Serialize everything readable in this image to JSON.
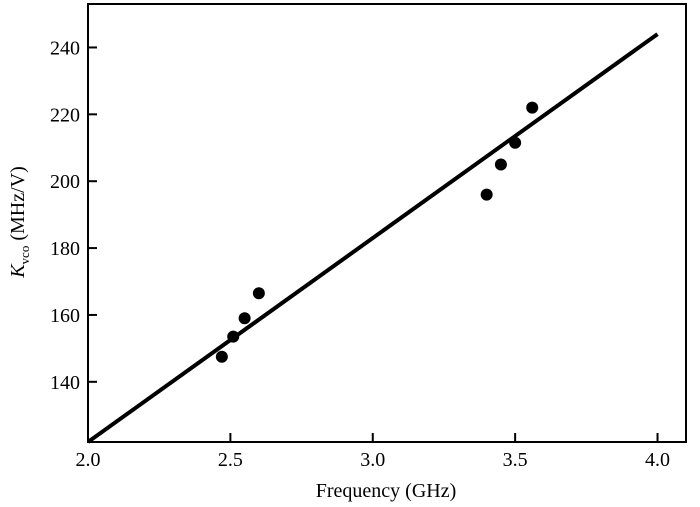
{
  "chart_data": {
    "type": "scatter",
    "xlabel": "Frequency (GHz)",
    "ylabel": {
      "symbol": "K",
      "subscript": "vco",
      "unit": " (MHz/V)"
    },
    "xlim": [
      2.0,
      4.1
    ],
    "ylim": [
      122,
      253
    ],
    "xticks": [
      2.0,
      2.5,
      3.0,
      3.5,
      4.0
    ],
    "xtick_labels": [
      "2.0",
      "2.5",
      "3.0",
      "3.5",
      "4.0"
    ],
    "yticks": [
      140,
      160,
      180,
      200,
      220,
      240
    ],
    "ytick_labels": [
      "140",
      "160",
      "180",
      "200",
      "220",
      "240"
    ],
    "grid": false,
    "series": [
      {
        "kind": "points",
        "x": [
          2.47,
          2.51,
          2.55,
          2.6,
          3.4,
          3.45,
          3.5,
          3.56
        ],
        "y": [
          147.5,
          153.5,
          159,
          166.5,
          196,
          205,
          211.5,
          222
        ]
      },
      {
        "kind": "fit-line",
        "x": [
          2.0,
          4.0
        ],
        "y": [
          122,
          244
        ]
      }
    ]
  }
}
